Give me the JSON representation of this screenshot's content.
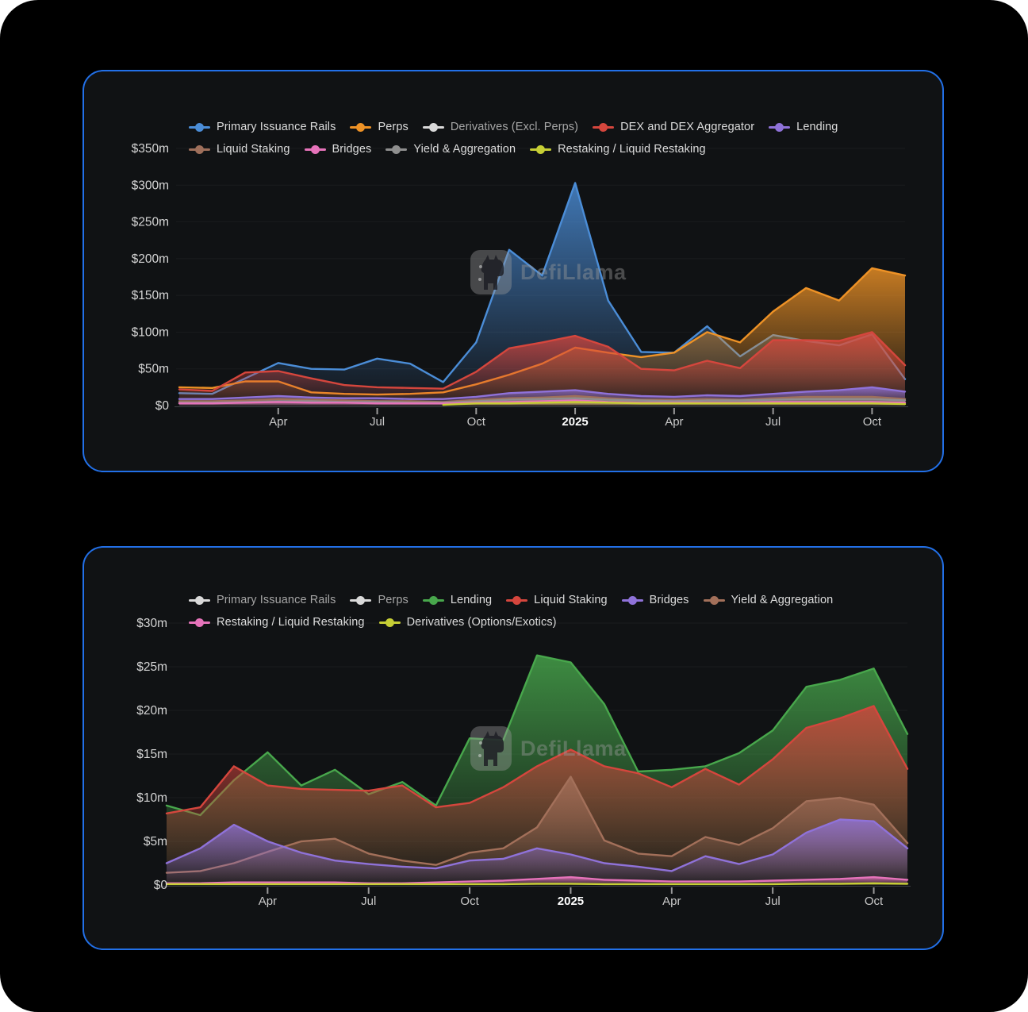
{
  "page": {
    "background": "#ffffff",
    "panel_color": "#000000",
    "card_border_color": "#2270e8",
    "card_background": "#101214",
    "watermark_text": "DefiLlama"
  },
  "chart_data": [
    {
      "type": "area",
      "title": "",
      "watermark": "DefiLlama",
      "x_months": [
        "Jan 2024",
        "Feb 2024",
        "Mar 2024",
        "Apr 2024",
        "May 2024",
        "Jun 2024",
        "Jul 2024",
        "Aug 2024",
        "Sep 2024",
        "Oct 2024",
        "Nov 2024",
        "Dec 2024",
        "Jan 2025",
        "Feb 2025",
        "Mar 2025",
        "Apr 2025",
        "May 2025",
        "Jun 2025",
        "Jul 2025",
        "Aug 2025",
        "Sep 2025",
        "Oct 2025",
        "Nov 2025"
      ],
      "tick_indices": [
        3,
        6,
        9,
        12,
        15,
        18,
        21
      ],
      "tick_labels": [
        "Apr",
        "Jul",
        "Oct",
        "2025",
        "Apr",
        "Jul",
        "Oct"
      ],
      "ylim": [
        0,
        350
      ],
      "y_tick_values": [
        0,
        50,
        100,
        150,
        200,
        250,
        300,
        350
      ],
      "y_tick_labels": [
        "$0",
        "$50m",
        "$100m",
        "$150m",
        "$200m",
        "$250m",
        "$300m",
        "$350m"
      ],
      "grid": true,
      "legend_position": "top",
      "legend_rows": [
        [
          0,
          1,
          2,
          3,
          4
        ],
        [
          5,
          6,
          7,
          8
        ]
      ],
      "draw_order": [
        0,
        1,
        3,
        4,
        5,
        7,
        6,
        8
      ],
      "series": [
        {
          "name": "primary-issuance-rails",
          "label": "Primary Issuance Rails",
          "color": "#4b8dd7",
          "disabled": false,
          "values": [
            17,
            16,
            37,
            58,
            50,
            49,
            64,
            57,
            32,
            86,
            212,
            177,
            303,
            143,
            73,
            72,
            108,
            67,
            96,
            88,
            82,
            97,
            36
          ]
        },
        {
          "name": "perps",
          "label": "Perps",
          "color": "#ee9226",
          "disabled": false,
          "values": [
            25,
            24,
            33,
            33,
            18,
            16,
            15,
            16,
            18,
            29,
            42,
            57,
            79,
            72,
            66,
            72,
            100,
            86,
            128,
            160,
            143,
            187,
            177
          ]
        },
        {
          "name": "derivatives-excl-perps",
          "label": "Derivatives (Excl. Perps)",
          "color": "#e3e3e3",
          "disabled": true,
          "values": null
        },
        {
          "name": "dex-and-dex-aggregator",
          "label": "DEX and DEX Aggregator",
          "color": "#d5463d",
          "disabled": false,
          "values": [
            22,
            20,
            45,
            47,
            37,
            28,
            25,
            24,
            23,
            46,
            78,
            86,
            95,
            80,
            50,
            48,
            61,
            51,
            89,
            89,
            88,
            100,
            55
          ]
        },
        {
          "name": "lending",
          "label": "Lending",
          "color": "#8f72d9",
          "disabled": false,
          "values": [
            9,
            9,
            11,
            13,
            11,
            10,
            10,
            9,
            9,
            12,
            17,
            19,
            21,
            16,
            13,
            12,
            14,
            13,
            16,
            19,
            21,
            25,
            19
          ]
        },
        {
          "name": "liquid-staking",
          "label": "Liquid Staking",
          "color": "#9e6f5b",
          "disabled": false,
          "values": [
            6,
            6,
            7,
            9,
            8,
            7,
            6,
            6,
            5,
            8,
            10,
            11,
            13,
            10,
            8,
            8,
            9,
            8,
            10,
            12,
            12,
            12,
            9
          ]
        },
        {
          "name": "bridges",
          "label": "Bridges",
          "color": "#e673ba",
          "disabled": false,
          "values": [
            3,
            3,
            4,
            5,
            4,
            4,
            3,
            3,
            3,
            4,
            5,
            6,
            7,
            5,
            4,
            4,
            4,
            4,
            5,
            5,
            5,
            5,
            4
          ]
        },
        {
          "name": "yield-and-aggregation",
          "label": "Yield & Aggregation",
          "color": "#8f8f8f",
          "disabled": false,
          "values": [
            4,
            4,
            5,
            6,
            6,
            5,
            5,
            4,
            4,
            6,
            8,
            9,
            10,
            8,
            7,
            6,
            7,
            7,
            8,
            9,
            9,
            9,
            7
          ]
        },
        {
          "name": "restaking-liquid-restaking",
          "label": "Restaking / Liquid Restaking",
          "color": "#c6ce35",
          "disabled": false,
          "values": [
            null,
            null,
            null,
            null,
            null,
            null,
            null,
            null,
            1,
            3,
            3,
            4,
            5,
            4,
            3,
            3,
            3,
            3,
            3,
            3,
            3,
            3,
            2
          ]
        }
      ]
    },
    {
      "type": "area",
      "title": "",
      "watermark": "DefiLlama",
      "x_months": [
        "Jan 2024",
        "Feb 2024",
        "Mar 2024",
        "Apr 2024",
        "May 2024",
        "Jun 2024",
        "Jul 2024",
        "Aug 2024",
        "Sep 2024",
        "Oct 2024",
        "Nov 2024",
        "Dec 2024",
        "Jan 2025",
        "Feb 2025",
        "Mar 2025",
        "Apr 2025",
        "May 2025",
        "Jun 2025",
        "Jul 2025",
        "Aug 2025",
        "Sep 2025",
        "Oct 2025",
        "Nov 2025"
      ],
      "tick_indices": [
        3,
        6,
        9,
        12,
        15,
        18,
        21
      ],
      "tick_labels": [
        "Apr",
        "Jul",
        "Oct",
        "2025",
        "Apr",
        "Jul",
        "Oct"
      ],
      "ylim": [
        0,
        30
      ],
      "y_tick_values": [
        0,
        5,
        10,
        15,
        20,
        25,
        30
      ],
      "y_tick_labels": [
        "$0",
        "$5m",
        "$10m",
        "$15m",
        "$20m",
        "$25m",
        "$30m"
      ],
      "grid": true,
      "legend_position": "top",
      "legend_rows": [
        [
          0,
          1,
          2,
          3,
          4,
          5
        ],
        [
          6,
          7
        ]
      ],
      "draw_order": [
        2,
        3,
        5,
        4,
        6,
        7
      ],
      "series": [
        {
          "name": "primary-issuance-rails",
          "label": "Primary Issuance Rails",
          "color": "#e3e3e3",
          "disabled": true,
          "values": null
        },
        {
          "name": "perps",
          "label": "Perps",
          "color": "#e3e3e3",
          "disabled": true,
          "values": null
        },
        {
          "name": "lending",
          "label": "Lending",
          "color": "#48a74c",
          "disabled": false,
          "values": [
            9.1,
            8,
            12,
            15.2,
            11.4,
            13.2,
            10.4,
            11.8,
            9.1,
            16.8,
            16.6,
            26.3,
            25.5,
            20.7,
            13,
            13.2,
            13.6,
            15.1,
            17.7,
            22.7,
            23.5,
            24.8,
            17.3
          ]
        },
        {
          "name": "liquid-staking",
          "label": "Liquid Staking",
          "color": "#d5463d",
          "disabled": false,
          "values": [
            8.2,
            8.9,
            13.6,
            11.4,
            11,
            10.9,
            10.8,
            11.4,
            8.9,
            9.4,
            11.2,
            13.6,
            15.5,
            13.6,
            12.8,
            11.2,
            13.3,
            11.5,
            14.4,
            18,
            19.1,
            20.5,
            13.3
          ]
        },
        {
          "name": "bridges",
          "label": "Bridges",
          "color": "#8f72d9",
          "disabled": false,
          "values": [
            2.5,
            4.2,
            6.9,
            5,
            3.7,
            2.8,
            2.4,
            2.1,
            1.9,
            2.8,
            3,
            4.2,
            3.5,
            2.5,
            2.1,
            1.6,
            3.3,
            2.4,
            3.5,
            6,
            7.5,
            7.3,
            4.2
          ]
        },
        {
          "name": "yield-and-aggregation",
          "label": "Yield & Aggregation",
          "color": "#a3705a",
          "disabled": false,
          "values": [
            1.4,
            1.6,
            2.5,
            3.8,
            5,
            5.3,
            3.6,
            2.8,
            2.3,
            3.7,
            4.2,
            6.6,
            12.4,
            5.1,
            3.6,
            3.3,
            5.5,
            4.6,
            6.5,
            9.6,
            10,
            9.2,
            4.8
          ]
        },
        {
          "name": "restaking-liquid-restaking",
          "label": "Restaking / Liquid Restaking",
          "color": "#e673ba",
          "disabled": false,
          "values": [
            0.2,
            0.2,
            0.3,
            0.3,
            0.3,
            0.3,
            0.2,
            0.2,
            0.3,
            0.4,
            0.5,
            0.7,
            0.9,
            0.6,
            0.5,
            0.4,
            0.4,
            0.4,
            0.5,
            0.6,
            0.7,
            0.9,
            0.6
          ]
        },
        {
          "name": "derivatives-options-exotics",
          "label": "Derivatives (Options/Exotics)",
          "color": "#c6ce35",
          "disabled": false,
          "values": [
            0.1,
            0.1,
            0.1,
            0.1,
            0.1,
            0.1,
            0.1,
            0.1,
            0.1,
            0.1,
            0.1,
            0.15,
            0.15,
            0.1,
            0.1,
            0.1,
            0.1,
            0.1,
            0.1,
            0.15,
            0.15,
            0.2,
            0.15
          ]
        }
      ]
    }
  ]
}
